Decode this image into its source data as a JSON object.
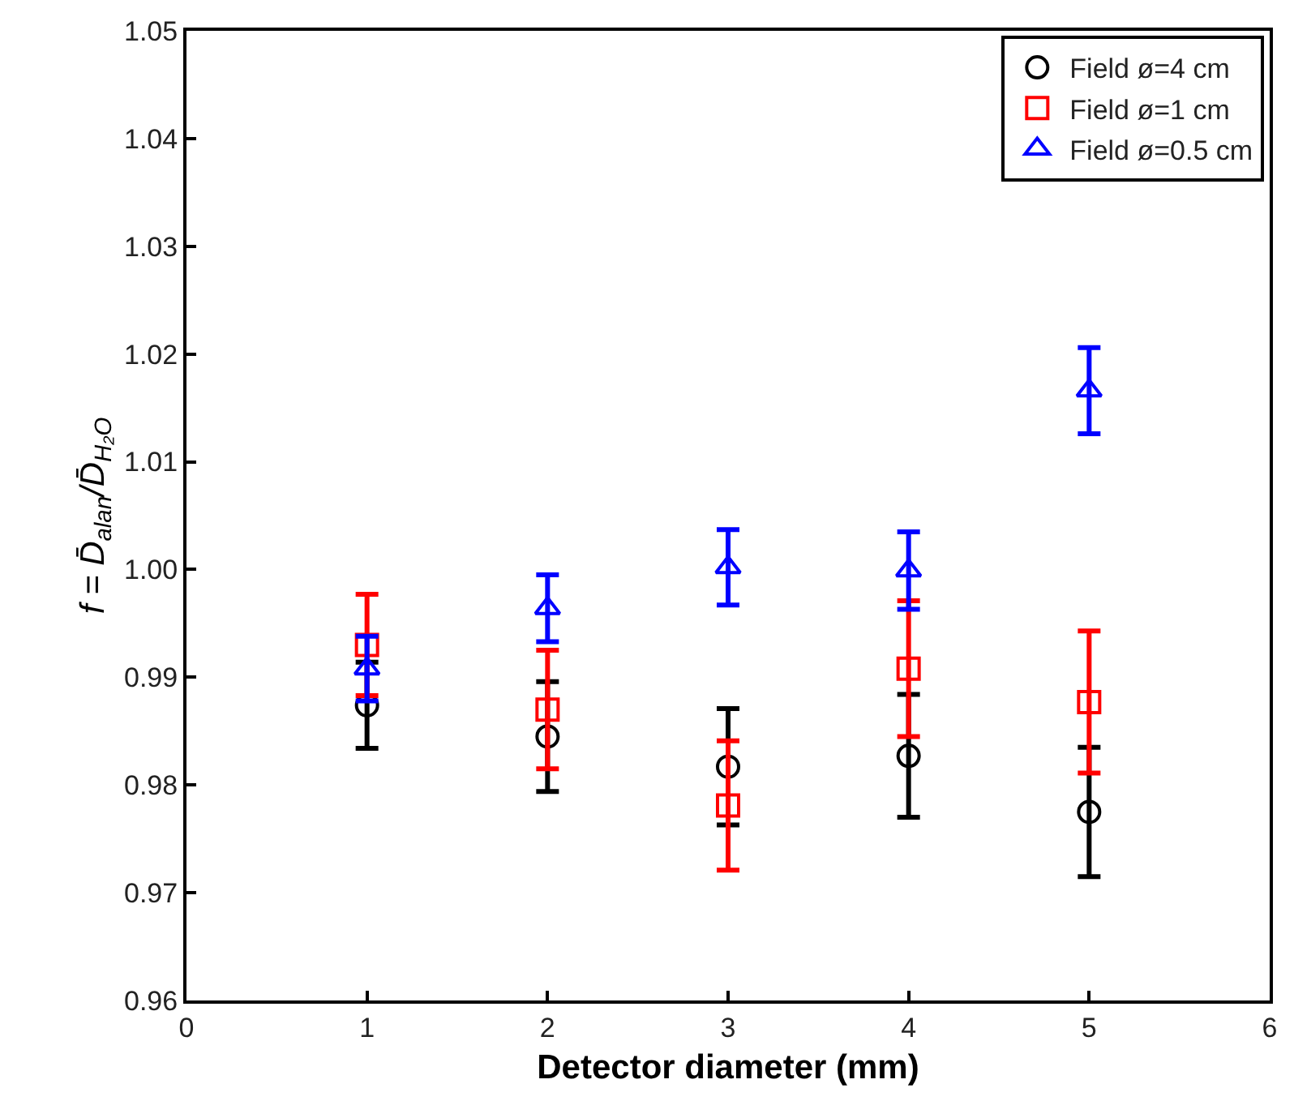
{
  "chart_data": {
    "type": "scatter",
    "xlabel": "Detector diameter (mm)",
    "ylabel": "f = D̄$_{alan}$/D̄$_{H₂O}$",
    "x": [
      1,
      2,
      3,
      4,
      5
    ],
    "series": [
      {
        "name": "Field ø=4 cm",
        "color": "#000000",
        "marker": "circle",
        "values": [
          0.9874,
          0.9845,
          0.9817,
          0.9827,
          0.9775
        ],
        "errors": [
          0.004,
          0.0051,
          0.0054,
          0.0057,
          0.006
        ]
      },
      {
        "name": "Field ø=1 cm",
        "color": "#ff0000",
        "marker": "square",
        "values": [
          0.993,
          0.987,
          0.9781,
          0.9908,
          0.9877
        ],
        "errors": [
          0.0047,
          0.0055,
          0.006,
          0.0063,
          0.0066
        ]
      },
      {
        "name": "Field ø=0.5 cm",
        "color": "#0000ff",
        "marker": "triangle",
        "values": [
          0.9908,
          0.9964,
          1.0002,
          0.9999,
          1.0166
        ],
        "errors": [
          0.003,
          0.0031,
          0.0035,
          0.0036,
          0.004
        ]
      }
    ],
    "xlim": [
      0,
      6
    ],
    "xticks": [
      0,
      1,
      2,
      3,
      4,
      5,
      6
    ],
    "ylim": [
      0.96,
      1.05
    ],
    "yticks": [
      0.96,
      0.97,
      0.98,
      0.99,
      {
        "value": 1.0,
        "label": "1.00"
      },
      1.01,
      1.02,
      1.03,
      1.04,
      1.05
    ],
    "legend": "top right",
    "line_style": "none"
  }
}
